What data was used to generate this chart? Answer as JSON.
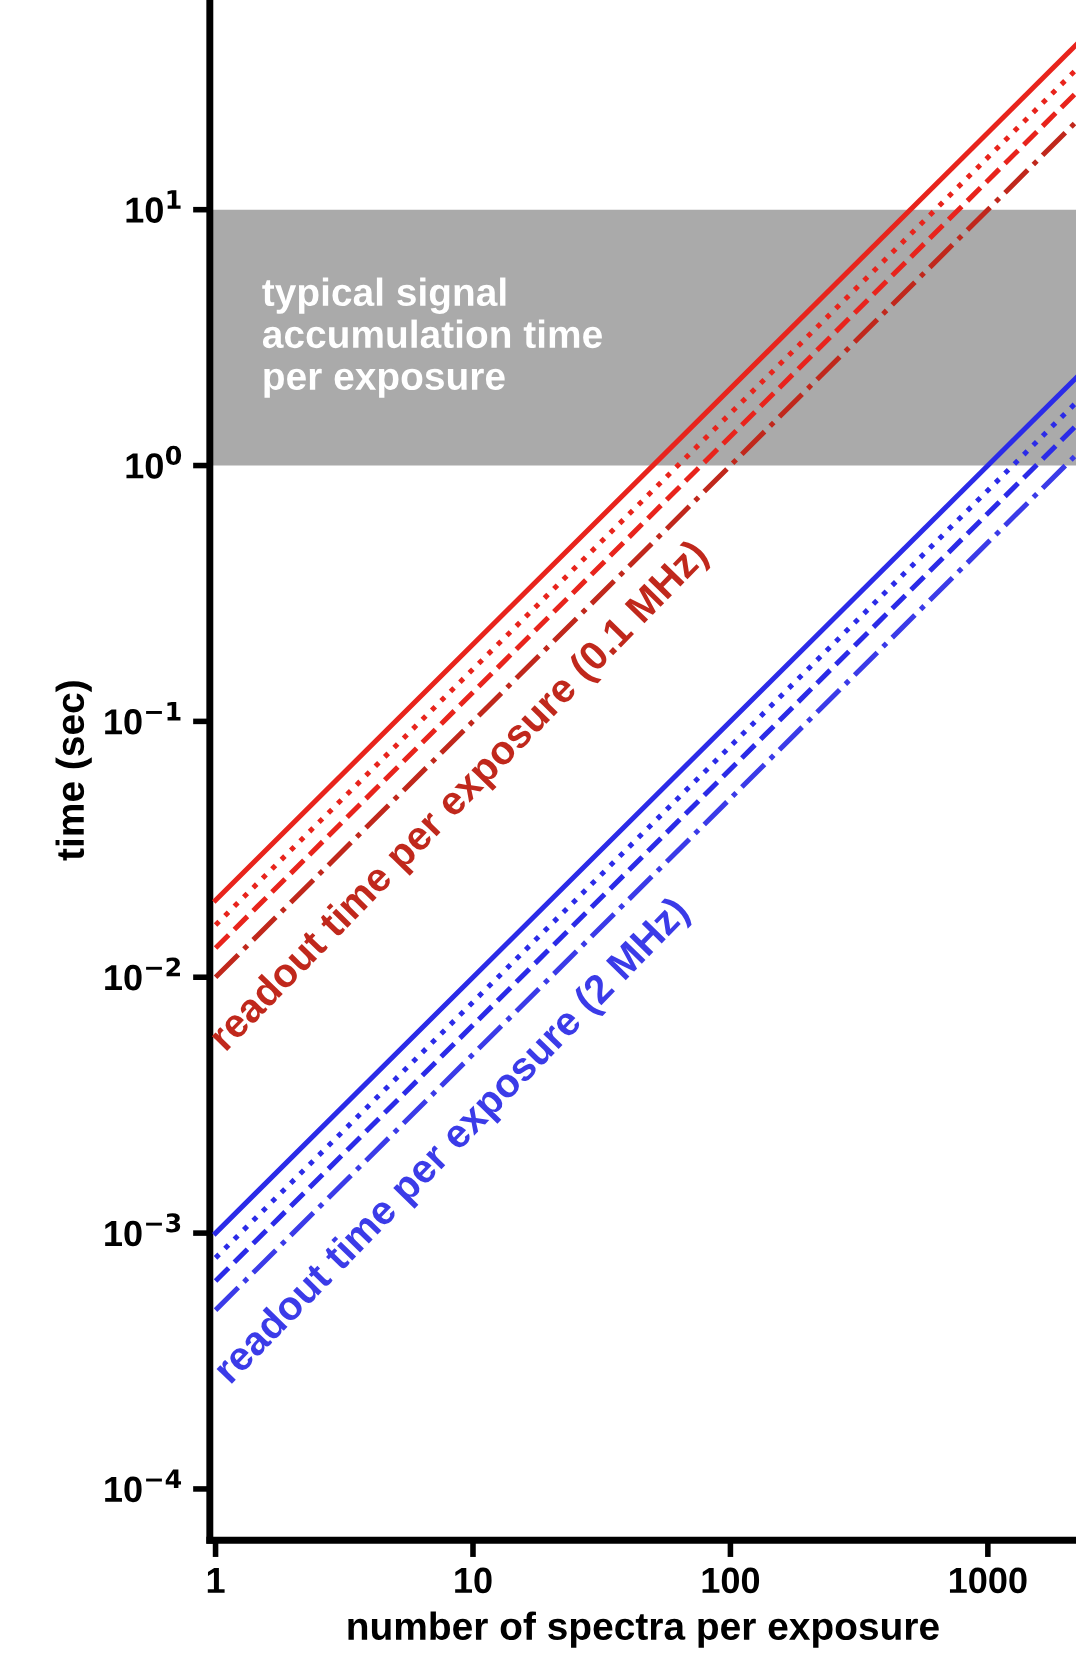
{
  "chart_data": {
    "type": "line",
    "xlabel": "number of spectra per exposure",
    "ylabel": "time (sec)",
    "xlim": [
      0.95,
      2200
    ],
    "ylim": [
      6.3e-05,
      66
    ],
    "xticks": [
      1,
      10,
      100,
      1000
    ],
    "yticks": [
      {
        "value": 0.0001,
        "label": "10$^{−4}$"
      },
      {
        "value": 0.001,
        "label": "10$^{−3}$"
      },
      {
        "value": 0.01,
        "label": "10$^{−2}$"
      },
      {
        "value": 0.1,
        "label": "10$^{−1}$"
      },
      {
        "value": 1,
        "label": "10$^{0}$"
      },
      {
        "value": 10,
        "label": "10$^{1}$"
      }
    ],
    "log": "xy",
    "grid": false,
    "legend": false,
    "x": [
      1,
      2200
    ],
    "series": [
      {
        "color": "#e8241c",
        "line_style": "solid",
        "values": [
          0.02,
          44
        ]
      },
      {
        "color": "#e8241c",
        "line_style": "dotted",
        "values": [
          0.016,
          35.2
        ]
      },
      {
        "color": "#e8241c",
        "line_style": "dashed",
        "values": [
          0.013,
          28.6
        ]
      },
      {
        "color": "#c0281c",
        "line_style": "dashdot",
        "values": [
          0.01,
          22
        ]
      },
      {
        "color": "#2b2be8",
        "line_style": "solid",
        "values": [
          0.001,
          2.2
        ]
      },
      {
        "color": "#2b2be8",
        "line_style": "dotted",
        "values": [
          0.0008,
          1.76
        ]
      },
      {
        "color": "#2b2be8",
        "line_style": "dashed",
        "values": [
          0.00065,
          1.43
        ]
      },
      {
        "color": "#3b3be8",
        "line_style": "dashdot",
        "values": [
          0.0005,
          1.1
        ]
      }
    ],
    "bands": [
      {
        "axis": "y",
        "from": 1,
        "to": 10,
        "label": "typical signal\naccumulation time\nper exposure",
        "color": "#aaaaaa"
      }
    ],
    "annotations": [
      "readout time per exposure (0.1 MHz)",
      "readout time per exposure (2 MHz)"
    ]
  }
}
